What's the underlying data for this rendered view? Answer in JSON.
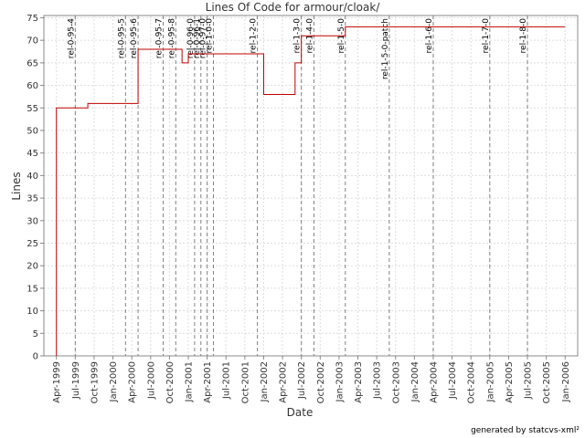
{
  "chart_data": {
    "type": "line",
    "title": "Lines Of Code for armour/cloak/",
    "x_label": "Date",
    "y_label": "Lines",
    "footer": "generated by statcvs-xml²",
    "x": [
      "1999-04",
      "1999-04",
      "1999-09",
      "1999-09",
      "2000-05",
      "2000-05",
      "2000-12",
      "2000-12",
      "2001-01",
      "2001-01",
      "2002-01",
      "2002-01",
      "2002-06",
      "2002-06",
      "2002-07",
      "2002-07",
      "2003-02",
      "2003-02",
      "2006-01"
    ],
    "series": [
      {
        "color": "#c00000",
        "values": [
          0,
          55,
          55,
          56,
          56,
          68,
          68,
          65,
          65,
          67,
          67,
          58,
          58,
          65,
          65,
          71,
          71,
          73,
          73
        ]
      }
    ],
    "markers": [
      {
        "x": "1999-07",
        "label": "rel-0-95-4"
      },
      {
        "x": "2000-03",
        "label": "rel-0-95-5"
      },
      {
        "x": "2000-05",
        "label": "rel-0-95-6"
      },
      {
        "x": "2000-09",
        "label": "rel-0-95-7"
      },
      {
        "x": "2000-11",
        "label": "rel-0-95-8"
      },
      {
        "x": "2001-02",
        "label": "rel-0-96-0"
      },
      {
        "x": "2001-03",
        "label": "rel-0-96-1"
      },
      {
        "x": "2001-04",
        "label": "rel-0-97-0"
      },
      {
        "x": "2001-05",
        "label": "rel-1-0-0"
      },
      {
        "x": "2001-12",
        "label": "rel-1-2-0"
      },
      {
        "x": "2002-07",
        "label": "rel-1-3-0"
      },
      {
        "x": "2002-09",
        "label": "rel-1-4-0"
      },
      {
        "x": "2003-02",
        "label": "rel-1-5-0"
      },
      {
        "x": "2003-09",
        "label": "rel-1-5-0-patch"
      },
      {
        "x": "2004-04",
        "label": "rel-1-6-0"
      },
      {
        "x": "2005-01",
        "label": "rel-1-7-0"
      },
      {
        "x": "2005-07",
        "label": "rel-1-8-0"
      }
    ],
    "marker_color": "#808080",
    "xlim": [
      "1999-02",
      "2006-03"
    ],
    "xticks": [
      {
        "value": "1999-04",
        "label": "Apr-1999"
      },
      {
        "value": "1999-07",
        "label": "Jul-1999"
      },
      {
        "value": "1999-10",
        "label": "Oct-1999"
      },
      {
        "value": "2000-01",
        "label": "Jan-2000"
      },
      {
        "value": "2000-04",
        "label": "Apr-2000"
      },
      {
        "value": "2000-07",
        "label": "Jul-2000"
      },
      {
        "value": "2000-10",
        "label": "Oct-2000"
      },
      {
        "value": "2001-01",
        "label": "Jan-2001"
      },
      {
        "value": "2001-04",
        "label": "Apr-2001"
      },
      {
        "value": "2001-07",
        "label": "Jul-2001"
      },
      {
        "value": "2001-10",
        "label": "Oct-2001"
      },
      {
        "value": "2002-01",
        "label": "Jan-2002"
      },
      {
        "value": "2002-04",
        "label": "Apr-2002"
      },
      {
        "value": "2002-07",
        "label": "Jul-2002"
      },
      {
        "value": "2002-10",
        "label": "Oct-2002"
      },
      {
        "value": "2003-01",
        "label": "Jan-2003"
      },
      {
        "value": "2003-04",
        "label": "Apr-2003"
      },
      {
        "value": "2003-07",
        "label": "Jul-2003"
      },
      {
        "value": "2003-10",
        "label": "Oct-2003"
      },
      {
        "value": "2004-01",
        "label": "Jan-2004"
      },
      {
        "value": "2004-04",
        "label": "Apr-2004"
      },
      {
        "value": "2004-07",
        "label": "Jul-2004"
      },
      {
        "value": "2004-10",
        "label": "Oct-2004"
      },
      {
        "value": "2005-01",
        "label": "Jan-2005"
      },
      {
        "value": "2005-04",
        "label": "Apr-2005"
      },
      {
        "value": "2005-07",
        "label": "Jul-2005"
      },
      {
        "value": "2005-10",
        "label": "Oct-2005"
      },
      {
        "value": "2006-01",
        "label": "Jan-2006"
      }
    ],
    "ylim": [
      0,
      75.5
    ],
    "yticks": [
      0,
      5,
      10,
      15,
      20,
      25,
      30,
      35,
      40,
      45,
      50,
      55,
      60,
      65,
      70,
      75
    ],
    "grid": true
  }
}
